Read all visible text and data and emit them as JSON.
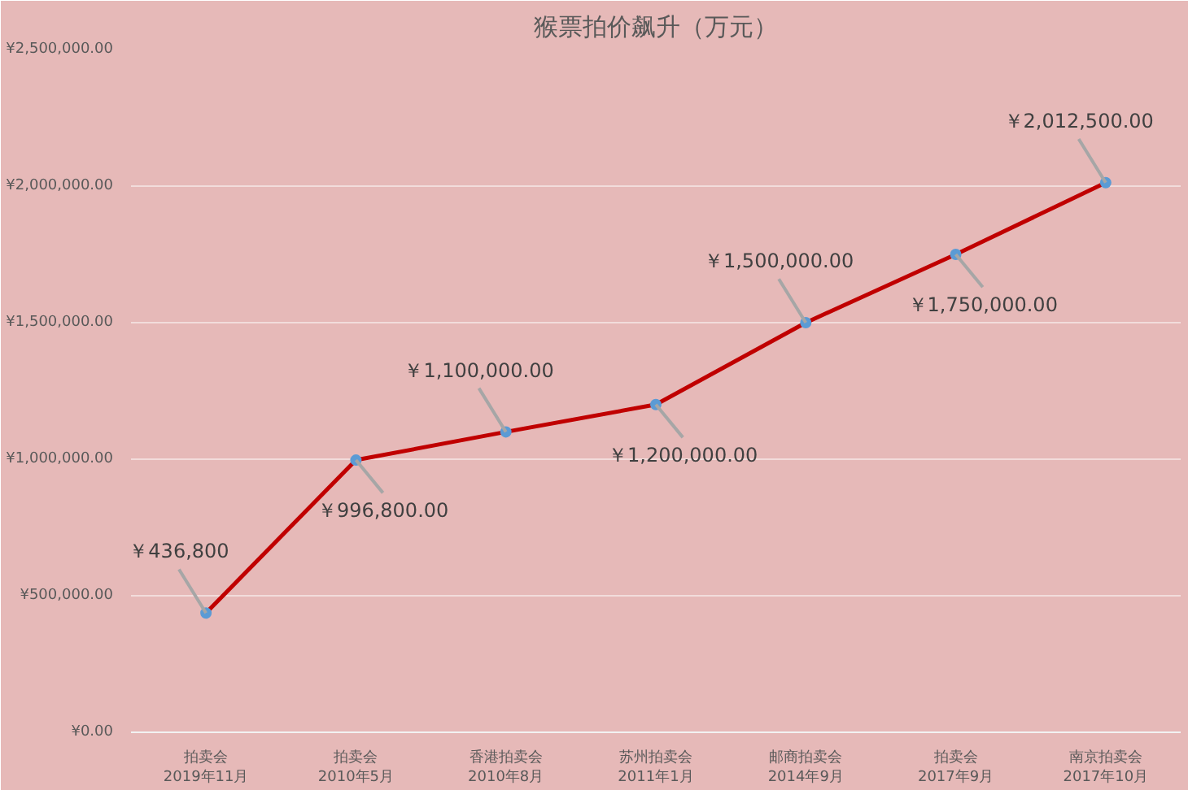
{
  "chart_data": {
    "type": "line",
    "title": "猴票拍价飙升（万元）",
    "categories": [
      "拍卖会\n2019年11月",
      "拍卖会\n2010年5月",
      "香港拍卖会\n2010年8月",
      "苏州拍卖会\n2011年1月",
      "邮商拍卖会\n2014年9月",
      "拍卖会\n2017年9月",
      "南京拍卖会\n2017年10月"
    ],
    "series": [
      {
        "color": "#c00000",
        "values": [
          436800,
          996800,
          1100000,
          1200000,
          1500000,
          1750000,
          2012500
        ],
        "value_labels": [
          "￥436,800",
          "￥996,800.00",
          "￥1,100,000.00",
          "￥1,200,000.00",
          "￥1,500,000.00",
          "￥1,750,000.00",
          "￥2,012,500.00"
        ]
      }
    ],
    "ylim": [
      0,
      2500000
    ],
    "yticks": [
      {
        "value": 0,
        "label": "¥0.00"
      },
      {
        "value": 500000,
        "label": "¥500,000.00"
      },
      {
        "value": 1000000,
        "label": "¥1,000,000.00"
      },
      {
        "value": 1500000,
        "label": "¥1,500,000.00"
      },
      {
        "value": 2000000,
        "label": "¥2,000,000.00"
      },
      {
        "value": 2500000,
        "label": "¥2,500,000.00"
      }
    ],
    "grid": "y",
    "marker": "circle",
    "line_style": "solid"
  }
}
